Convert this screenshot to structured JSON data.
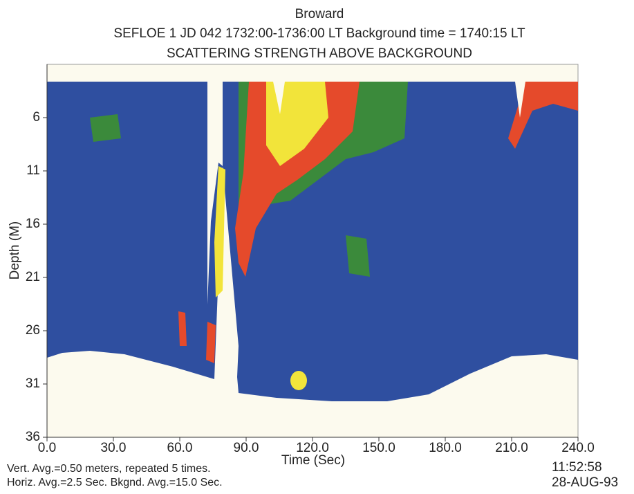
{
  "chart_data": {
    "type": "contour",
    "title_lines": [
      "Broward",
      "SEFLOE 1 JD 042 1732:00-1736:00 LT Background time = 1740:15 LT",
      "SCATTERING STRENGTH ABOVE BACKGROUND"
    ],
    "x_label": "Time (Sec)",
    "y_label": "Depth (M)",
    "xlim": [
      0,
      240
    ],
    "xticks": [
      {
        "value": 0,
        "label": "0.0"
      },
      {
        "value": 30,
        "label": "30.0"
      },
      {
        "value": 60,
        "label": "60.0"
      },
      {
        "value": 90,
        "label": "90.0"
      },
      {
        "value": 120,
        "label": "120.0"
      },
      {
        "value": 150,
        "label": "150.0"
      },
      {
        "value": 180,
        "label": "180.0"
      },
      {
        "value": 210,
        "label": "210.0"
      },
      {
        "value": 240,
        "label": "240.0"
      }
    ],
    "ylim": [
      36,
      1
    ],
    "yticks": [
      6,
      11,
      16,
      21,
      26,
      31,
      36
    ],
    "grid": false,
    "notes": [
      "Vert. Avg.=0.50 meters, repeated 5 times.",
      "Horiz. Avg.=2.5 Sec. Bkgnd. Avg.=15.0 Sec."
    ],
    "stamp": [
      "11:52:58",
      "28-AUG-93"
    ]
  }
}
